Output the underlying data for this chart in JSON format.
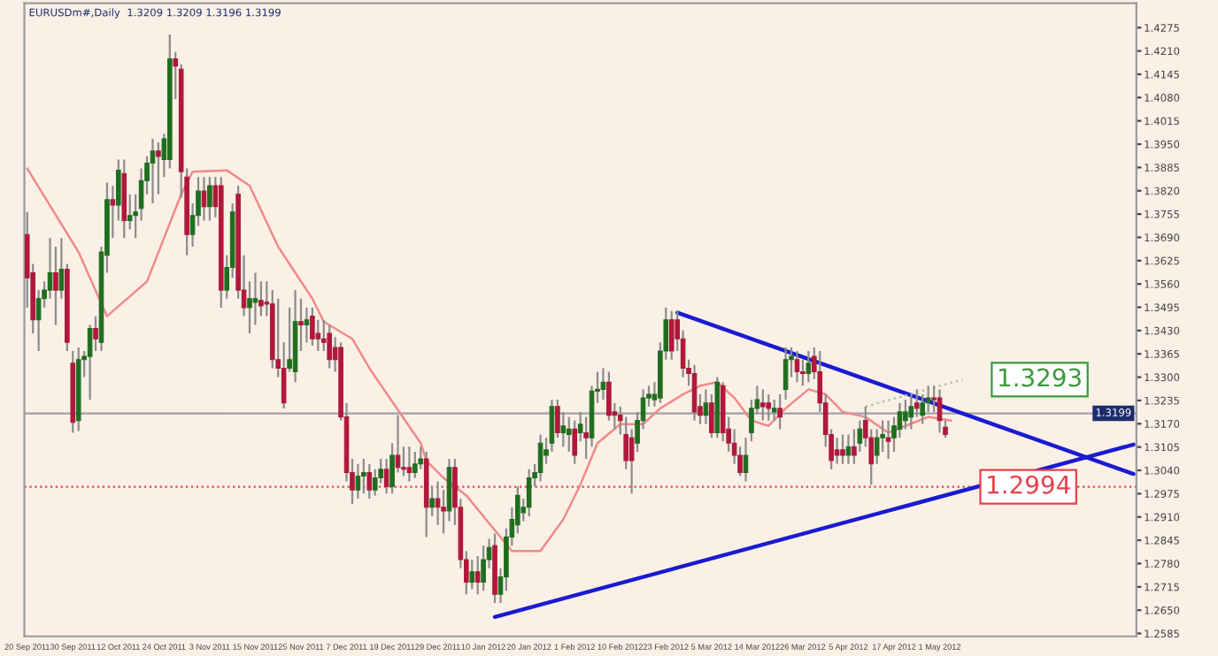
{
  "chart_data": {
    "type": "candlestick",
    "title": "EURUSDm#,Daily  1.3209 1.3209 1.3196 1.3199",
    "categories": [
      "20 Sep 2011",
      null,
      null,
      null,
      null,
      null,
      null,
      null,
      "30 Sep 2011",
      null,
      null,
      null,
      null,
      null,
      null,
      null,
      "12 Oct 2011",
      null,
      null,
      null,
      null,
      null,
      null,
      null,
      "24 Oct 2011",
      null,
      null,
      null,
      null,
      null,
      null,
      null,
      "3 Nov 2011",
      null,
      null,
      null,
      null,
      null,
      null,
      null,
      "15 Nov 2011",
      null,
      null,
      null,
      null,
      null,
      null,
      null,
      "25 Nov 2011",
      null,
      null,
      null,
      null,
      null,
      null,
      null,
      "7 Dec 2011",
      null,
      null,
      null,
      null,
      null,
      null,
      null,
      "19 Dec 2011",
      null,
      null,
      null,
      null,
      null,
      null,
      null,
      "29 Dec 2011",
      null,
      null,
      null,
      null,
      null,
      null,
      null,
      "10 Jan 2012",
      null,
      null,
      null,
      null,
      null,
      null,
      null,
      "20 Jan 2012",
      null,
      null,
      null,
      null,
      null,
      null,
      null,
      "1 Feb 2012",
      null,
      null,
      null,
      null,
      null,
      null,
      null,
      "10 Feb 2012",
      null,
      null,
      null,
      null,
      null,
      null,
      null,
      "23 Feb 2012",
      null,
      null,
      null,
      null,
      null,
      null,
      null,
      "5 Mar 2012",
      null,
      null,
      null,
      null,
      null,
      null,
      null,
      "14 Mar 2012",
      null,
      null,
      null,
      null,
      null,
      null,
      null,
      "26 Mar 2012",
      null,
      null,
      null,
      null,
      null,
      null,
      null,
      "5 Apr 2012",
      null,
      null,
      null,
      null,
      null,
      null,
      null,
      "17 Apr 2012",
      null,
      null,
      null,
      null,
      null,
      null,
      null,
      "1 May 2012",
      null,
      null,
      null,
      null,
      null,
      null,
      null,
      null,
      null,
      null,
      null,
      null,
      null,
      null,
      null,
      null,
      null,
      null,
      null,
      null,
      null,
      null,
      null,
      null,
      null,
      null,
      null,
      null,
      null,
      null,
      null,
      null,
      null,
      null
    ],
    "ohlc": [
      [
        1.3698,
        1.3761,
        1.3494,
        1.3577
      ],
      [
        1.3591,
        1.3616,
        1.3422,
        1.346
      ],
      [
        1.346,
        1.3543,
        1.3373,
        1.3519
      ],
      [
        1.3519,
        1.3567,
        1.3494,
        1.3543
      ],
      [
        1.3543,
        1.3688,
        1.3519,
        1.3591
      ],
      [
        1.3591,
        1.3664,
        1.3446,
        1.3543
      ],
      [
        1.3543,
        1.3688,
        1.3519,
        1.3601
      ],
      [
        1.3601,
        1.3616,
        1.3373,
        1.3397
      ],
      [
        1.3339,
        1.3373,
        1.3145,
        1.3174
      ],
      [
        1.3179,
        1.3383,
        1.315,
        1.3349
      ],
      [
        1.3349,
        1.3373,
        1.33,
        1.3358
      ],
      [
        1.3358,
        1.3446,
        1.3237,
        1.3436
      ],
      [
        1.3436,
        1.347,
        1.3373,
        1.3407
      ],
      [
        1.3397,
        1.3664,
        1.3373,
        1.3649
      ],
      [
        1.364,
        1.3843,
        1.3591,
        1.3795
      ],
      [
        1.3795,
        1.3834,
        1.3688,
        1.378
      ],
      [
        1.378,
        1.3907,
        1.3737,
        1.3877
      ],
      [
        1.3868,
        1.3907,
        1.3688,
        1.3737
      ],
      [
        1.3737,
        1.381,
        1.3712,
        1.3751
      ],
      [
        1.3751,
        1.381,
        1.3688,
        1.3761
      ],
      [
        1.3771,
        1.3882,
        1.3737,
        1.3848
      ],
      [
        1.3848,
        1.3916,
        1.381,
        1.3897
      ],
      [
        1.3897,
        1.3965,
        1.3785,
        1.3931
      ],
      [
        1.3931,
        1.3955,
        1.381,
        1.3916
      ],
      [
        1.3907,
        1.3979,
        1.3858,
        1.3965
      ],
      [
        1.3907,
        1.4256,
        1.3882,
        1.4188
      ],
      [
        1.4188,
        1.4207,
        1.4076,
        1.4168
      ],
      [
        1.4159,
        1.4173,
        1.38,
        1.3873
      ],
      [
        1.3858,
        1.3882,
        1.364,
        1.3698
      ],
      [
        1.3698,
        1.3785,
        1.3664,
        1.3751
      ],
      [
        1.3751,
        1.3858,
        1.3722,
        1.3819
      ],
      [
        1.3819,
        1.3858,
        1.3737,
        1.3776
      ],
      [
        1.3776,
        1.3858,
        1.3737,
        1.3834
      ],
      [
        1.3834,
        1.3858,
        1.3746,
        1.3776
      ],
      [
        1.3834,
        1.3858,
        1.3494,
        1.3543
      ],
      [
        1.3543,
        1.364,
        1.3519,
        1.3606
      ],
      [
        1.3606,
        1.3785,
        1.3577,
        1.3761
      ],
      [
        1.381,
        1.3834,
        1.3519,
        1.3543
      ],
      [
        1.3543,
        1.364,
        1.347,
        1.3494
      ],
      [
        1.3494,
        1.3567,
        1.3422,
        1.3519
      ],
      [
        1.3509,
        1.3591,
        1.3446,
        1.3519
      ],
      [
        1.3514,
        1.3567,
        1.347,
        1.3499
      ],
      [
        1.3509,
        1.3567,
        1.347,
        1.3504
      ],
      [
        1.3504,
        1.3543,
        1.3325,
        1.3349
      ],
      [
        1.3349,
        1.3519,
        1.33,
        1.3325
      ],
      [
        1.3325,
        1.3397,
        1.3213,
        1.3228
      ],
      [
        1.3325,
        1.3494,
        1.3315,
        1.3349
      ],
      [
        1.3315,
        1.3543,
        1.3286,
        1.3455
      ],
      [
        1.3455,
        1.3519,
        1.3373,
        1.3446
      ],
      [
        1.3446,
        1.3494,
        1.3397,
        1.346
      ],
      [
        1.347,
        1.3494,
        1.3388,
        1.3407
      ],
      [
        1.3422,
        1.346,
        1.3373,
        1.3407
      ],
      [
        1.3407,
        1.346,
        1.3373,
        1.3397
      ],
      [
        1.3422,
        1.3446,
        1.3325,
        1.3349
      ],
      [
        1.3383,
        1.3412,
        1.3315,
        1.3349
      ],
      [
        1.3383,
        1.3397,
        1.3179,
        1.3189
      ],
      [
        1.3189,
        1.3228,
        1.3009,
        1.3034
      ],
      [
        1.3034,
        1.3072,
        1.2946,
        1.2985
      ],
      [
        1.2985,
        1.3058,
        1.2961,
        1.3024
      ],
      [
        1.3024,
        1.3072,
        1.2975,
        1.3034
      ],
      [
        1.3034,
        1.3058,
        1.2961,
        1.2985
      ],
      [
        1.2985,
        1.3043,
        1.297,
        1.3019
      ],
      [
        1.3019,
        1.3072,
        1.3004,
        1.3043
      ],
      [
        1.3043,
        1.3072,
        1.2975,
        1.2995
      ],
      [
        1.2995,
        1.3116,
        1.2975,
        1.3082
      ],
      [
        1.3082,
        1.3194,
        1.3034,
        1.3048
      ],
      [
        1.3048,
        1.3106,
        1.3024,
        1.3043
      ],
      [
        1.3048,
        1.3106,
        1.3009,
        1.3034
      ],
      [
        1.3034,
        1.3092,
        1.3019,
        1.3058
      ],
      [
        1.3058,
        1.3106,
        1.3043,
        1.3072
      ],
      [
        1.3072,
        1.3092,
        1.2854,
        1.2937
      ],
      [
        1.2937,
        1.2995,
        1.2912,
        1.2961
      ],
      [
        1.2961,
        1.3009,
        1.2888,
        1.2937
      ],
      [
        1.2937,
        1.2985,
        1.2864,
        1.2927
      ],
      [
        1.2927,
        1.3072,
        1.2898,
        1.3048
      ],
      [
        1.3048,
        1.3072,
        1.2888,
        1.2937
      ],
      [
        1.2937,
        1.2961,
        1.2767,
        1.2791
      ],
      [
        1.2791,
        1.2815,
        1.2694,
        1.2728
      ],
      [
        1.2728,
        1.2791,
        1.2709,
        1.2757
      ],
      [
        1.2757,
        1.2801,
        1.2694,
        1.2728
      ],
      [
        1.2728,
        1.283,
        1.2704,
        1.2791
      ],
      [
        1.2791,
        1.2849,
        1.2767,
        1.2825
      ],
      [
        1.283,
        1.2864,
        1.267,
        1.2694
      ],
      [
        1.2694,
        1.2767,
        1.267,
        1.2743
      ],
      [
        1.2743,
        1.2878,
        1.2704,
        1.2854
      ],
      [
        1.2854,
        1.2937,
        1.283,
        1.2903
      ],
      [
        1.2888,
        1.2995,
        1.2864,
        1.297
      ],
      [
        1.2922,
        1.2961,
        1.2898,
        1.2937
      ],
      [
        1.2937,
        1.3043,
        1.2912,
        1.3019
      ],
      [
        1.3019,
        1.3058,
        1.2995,
        1.3034
      ],
      [
        1.3034,
        1.314,
        1.3009,
        1.3116
      ],
      [
        1.3082,
        1.3131,
        1.3058,
        1.3097
      ],
      [
        1.3116,
        1.3237,
        1.3092,
        1.3218
      ],
      [
        1.3218,
        1.3237,
        1.3131,
        1.3145
      ],
      [
        1.3145,
        1.3203,
        1.3106,
        1.3164
      ],
      [
        1.314,
        1.3189,
        1.3092,
        1.3155
      ],
      [
        1.3155,
        1.3179,
        1.3058,
        1.3082
      ],
      [
        1.3145,
        1.3203,
        1.3121,
        1.3169
      ],
      [
        1.3145,
        1.3189,
        1.3072,
        1.3131
      ],
      [
        1.3131,
        1.3276,
        1.3106,
        1.3261
      ],
      [
        1.3261,
        1.3315,
        1.3228,
        1.3266
      ],
      [
        1.3266,
        1.3325,
        1.3237,
        1.3286
      ],
      [
        1.3286,
        1.3315,
        1.3179,
        1.3194
      ],
      [
        1.3203,
        1.3228,
        1.3155,
        1.3194
      ],
      [
        1.3194,
        1.3218,
        1.314,
        1.3179
      ],
      [
        1.314,
        1.3189,
        1.3043,
        1.3067
      ],
      [
        1.3131,
        1.3155,
        1.2975,
        1.3067
      ],
      [
        1.3116,
        1.3203,
        1.3092,
        1.3179
      ],
      [
        1.3179,
        1.3266,
        1.3155,
        1.3242
      ],
      [
        1.3242,
        1.3276,
        1.3218,
        1.3252
      ],
      [
        1.3237,
        1.3286,
        1.3218,
        1.3252
      ],
      [
        1.3242,
        1.3397,
        1.3228,
        1.3373
      ],
      [
        1.3373,
        1.3494,
        1.3349,
        1.346
      ],
      [
        1.346,
        1.3485,
        1.3349,
        1.3373
      ],
      [
        1.346,
        1.3485,
        1.3373,
        1.3407
      ],
      [
        1.3407,
        1.3431,
        1.33,
        1.3325
      ],
      [
        1.3325,
        1.3349,
        1.3276,
        1.331
      ],
      [
        1.331,
        1.3334,
        1.3179,
        1.3203
      ],
      [
        1.3218,
        1.3252,
        1.3169,
        1.3194
      ],
      [
        1.3194,
        1.3266,
        1.3169,
        1.3228
      ],
      [
        1.3228,
        1.3252,
        1.3131,
        1.3145
      ],
      [
        1.3145,
        1.33,
        1.3131,
        1.3286
      ],
      [
        1.3276,
        1.3286,
        1.3121,
        1.3145
      ],
      [
        1.3155,
        1.3189,
        1.3092,
        1.3116
      ],
      [
        1.3116,
        1.3155,
        1.3058,
        1.3082
      ],
      [
        1.3082,
        1.3106,
        1.3024,
        1.3034
      ],
      [
        1.3034,
        1.3131,
        1.3009,
        1.3082
      ],
      [
        1.3145,
        1.3237,
        1.3121,
        1.3213
      ],
      [
        1.3213,
        1.3276,
        1.3198,
        1.3237
      ],
      [
        1.3228,
        1.3266,
        1.3179,
        1.3218
      ],
      [
        1.3228,
        1.3252,
        1.3179,
        1.3213
      ],
      [
        1.3203,
        1.3237,
        1.3179,
        1.3213
      ],
      [
        1.3213,
        1.3252,
        1.3155,
        1.3189
      ],
      [
        1.3266,
        1.3383,
        1.3237,
        1.3349
      ],
      [
        1.3349,
        1.3383,
        1.33,
        1.3358
      ],
      [
        1.3349,
        1.3373,
        1.3286,
        1.3315
      ],
      [
        1.3315,
        1.3349,
        1.3276,
        1.331
      ],
      [
        1.331,
        1.3373,
        1.3286,
        1.3339
      ],
      [
        1.3358,
        1.3383,
        1.3295,
        1.3315
      ],
      [
        1.3315,
        1.3373,
        1.3203,
        1.3228
      ],
      [
        1.3228,
        1.3252,
        1.3106,
        1.314
      ],
      [
        1.314,
        1.3155,
        1.3043,
        1.3067
      ],
      [
        1.3097,
        1.3131,
        1.3058,
        1.3082
      ],
      [
        1.3097,
        1.314,
        1.3058,
        1.3082
      ],
      [
        1.3082,
        1.314,
        1.3058,
        1.3106
      ],
      [
        1.3106,
        1.3155,
        1.3058,
        1.3082
      ],
      [
        1.3116,
        1.3179,
        1.3092,
        1.3155
      ],
      [
        1.3179,
        1.3218,
        1.3106,
        1.3131
      ],
      [
        1.3131,
        1.3155,
        1.3,
        1.3058
      ],
      [
        1.3082,
        1.3155,
        1.3058,
        1.3131
      ],
      [
        1.3131,
        1.3179,
        1.3092,
        1.314
      ],
      [
        1.3131,
        1.3179,
        1.3072,
        1.3121
      ],
      [
        1.3131,
        1.3189,
        1.3092,
        1.3164
      ],
      [
        1.3155,
        1.3228,
        1.3131,
        1.3203
      ],
      [
        1.3179,
        1.3237,
        1.3155,
        1.3203
      ],
      [
        1.3189,
        1.3252,
        1.3155,
        1.3218
      ],
      [
        1.3228,
        1.3266,
        1.3189,
        1.3213
      ],
      [
        1.3194,
        1.3252,
        1.3169,
        1.3228
      ],
      [
        1.3228,
        1.3276,
        1.3203,
        1.3242
      ],
      [
        1.3242,
        1.3276,
        1.3203,
        1.3237
      ],
      [
        1.3242,
        1.3266,
        1.3145,
        1.3179
      ],
      [
        1.316,
        1.3179,
        1.3131,
        1.314
      ],
      null,
      null,
      null,
      null,
      null,
      null,
      null,
      null,
      null,
      null,
      null,
      null,
      null,
      null,
      null,
      null,
      null,
      null,
      null,
      null,
      null,
      null,
      null,
      null,
      null,
      null,
      null,
      null,
      null,
      null,
      null,
      null,
      null
    ],
    "series": [
      {
        "type": "line",
        "color": "#f08a8a",
        "line_style": "solid",
        "values": [
          1.3882,
          null,
          null,
          null,
          null,
          null,
          null,
          null,
          null,
          1.3649,
          null,
          null,
          null,
          null,
          1.347,
          null,
          null,
          null,
          null,
          null,
          null,
          1.3567,
          null,
          null,
          null,
          null,
          null,
          1.381,
          null,
          1.3873,
          null,
          null,
          null,
          null,
          null,
          1.3877,
          null,
          null,
          null,
          1.3834,
          null,
          null,
          null,
          null,
          1.3664,
          null,
          null,
          null,
          null,
          null,
          1.3519,
          null,
          1.3455,
          null,
          null,
          null,
          null,
          1.3407,
          null,
          null,
          1.3325,
          null,
          null,
          null,
          null,
          null,
          null,
          null,
          null,
          1.3116,
          1.3067,
          null,
          null,
          1.3019,
          null,
          null,
          null,
          1.297,
          null,
          null,
          null,
          null,
          1.2873,
          null,
          null,
          1.2815,
          null,
          null,
          null,
          null,
          1.2815,
          null,
          null,
          null,
          1.2903,
          null,
          null,
          1.3,
          null,
          null,
          1.3116,
          null,
          null,
          null,
          1.3169,
          null,
          null,
          null,
          1.3169,
          null,
          null,
          1.3213,
          null,
          null,
          null,
          1.3252,
          null,
          null,
          1.3276,
          null,
          null,
          1.3286,
          null,
          null,
          1.3242,
          null,
          null,
          1.3179,
          null,
          null,
          1.3164,
          null,
          null,
          1.3213,
          null,
          null,
          null,
          1.3266,
          null,
          null,
          1.3252,
          null,
          null,
          1.3203,
          null,
          null,
          null,
          1.3189,
          null,
          null,
          null,
          1.3145,
          null,
          null,
          1.3164,
          null,
          null,
          null,
          1.3189,
          null,
          null,
          null,
          1.3179,
          null,
          null,
          null,
          null,
          null,
          null,
          null,
          null,
          null,
          null,
          null,
          null,
          null,
          null,
          null,
          null,
          null,
          null,
          null,
          null,
          null,
          null,
          null,
          null,
          null,
          null,
          null,
          null,
          null,
          null,
          null,
          null
        ]
      },
      {
        "type": "line",
        "color": "#1a1ad0",
        "line_style": "solid",
        "values": [
          null,
          null,
          null,
          null,
          null,
          null,
          null,
          null,
          null,
          null,
          null,
          null,
          null,
          null,
          null,
          null,
          null,
          null,
          null,
          null,
          null,
          null,
          null,
          null,
          null,
          null,
          null,
          null,
          null,
          null,
          null,
          null,
          null,
          null,
          null,
          null,
          null,
          null,
          null,
          null,
          null,
          null,
          null,
          null,
          null,
          null,
          null,
          null,
          null,
          null,
          null,
          null,
          null,
          null,
          null,
          null,
          null,
          null,
          null,
          null,
          null,
          null,
          null,
          null,
          null,
          null,
          null,
          null,
          null,
          null,
          null,
          null,
          null,
          null,
          null,
          null,
          null,
          null,
          null,
          null,
          null,
          null,
          null,
          null,
          null,
          null,
          null,
          null,
          null,
          null,
          null,
          null,
          null,
          null,
          null,
          null,
          null,
          null,
          null,
          null,
          null,
          null,
          null,
          null,
          null,
          null,
          null,
          null,
          null,
          null,
          null,
          null,
          null,
          null,
          1.348,
          null,
          null,
          null,
          null,
          null,
          null,
          null,
          null,
          null,
          null,
          null,
          null,
          null,
          null,
          null,
          null,
          null,
          null,
          null,
          null,
          null,
          null,
          null,
          null,
          null,
          null,
          null,
          null,
          null,
          null,
          null,
          null,
          null,
          null,
          null,
          null,
          null,
          null,
          null,
          null,
          null,
          null,
          null,
          null,
          null,
          null,
          null,
          null,
          null,
          null,
          null,
          null,
          null,
          null,
          null,
          null,
          null,
          null,
          null,
          null,
          null,
          null,
          null,
          null,
          null,
          null,
          null,
          null,
          null,
          null,
          null,
          null,
          null,
          null,
          null,
          null,
          null,
          null,
          null,
          1.303
        ]
      },
      {
        "type": "line",
        "color": "#1a1ad0",
        "line_style": "solid",
        "values": [
          null,
          null,
          null,
          null,
          null,
          null,
          null,
          null,
          null,
          null,
          null,
          null,
          null,
          null,
          null,
          null,
          null,
          null,
          null,
          null,
          null,
          null,
          null,
          null,
          null,
          null,
          null,
          null,
          null,
          null,
          null,
          null,
          null,
          null,
          null,
          null,
          null,
          null,
          null,
          null,
          null,
          null,
          null,
          null,
          null,
          null,
          null,
          null,
          null,
          null,
          null,
          null,
          null,
          null,
          null,
          null,
          null,
          null,
          null,
          null,
          null,
          null,
          null,
          null,
          null,
          null,
          null,
          null,
          null,
          null,
          null,
          null,
          null,
          null,
          null,
          null,
          null,
          null,
          null,
          null,
          null,
          null,
          1.2631,
          null,
          null,
          null,
          null,
          null,
          null,
          null,
          null,
          null,
          null,
          null,
          null,
          null,
          null,
          null,
          null,
          null,
          null,
          null,
          null,
          null,
          null,
          null,
          null,
          null,
          null,
          null,
          null,
          null,
          null,
          null,
          null,
          null,
          null,
          null,
          null,
          null,
          null,
          null,
          null,
          null,
          null,
          null,
          null,
          null,
          null,
          null,
          null,
          null,
          null,
          null,
          null,
          null,
          null,
          null,
          null,
          null,
          null,
          null,
          null,
          null,
          null,
          null,
          null,
          null,
          null,
          null,
          null,
          null,
          null,
          null,
          null,
          null,
          null,
          null,
          null,
          null,
          null,
          null,
          null,
          null,
          null,
          null,
          null,
          null,
          null,
          null,
          null,
          null,
          null,
          null,
          null,
          null,
          null,
          null,
          null,
          null,
          null,
          null,
          null,
          null,
          null,
          null,
          null,
          null,
          null,
          null,
          null,
          null,
          null,
          null,
          1.3112
        ]
      },
      {
        "type": "line",
        "color": "#a8c8a0",
        "line_style": "dotted",
        "values": [
          null,
          null,
          null,
          null,
          null,
          null,
          null,
          null,
          null,
          null,
          null,
          null,
          null,
          null,
          null,
          null,
          null,
          null,
          null,
          null,
          null,
          null,
          null,
          null,
          null,
          null,
          null,
          null,
          null,
          null,
          null,
          null,
          null,
          null,
          null,
          null,
          null,
          null,
          null,
          null,
          null,
          null,
          null,
          null,
          null,
          null,
          null,
          null,
          null,
          null,
          null,
          null,
          null,
          null,
          null,
          null,
          null,
          null,
          null,
          null,
          null,
          null,
          null,
          null,
          null,
          null,
          null,
          null,
          null,
          null,
          null,
          null,
          null,
          null,
          null,
          null,
          null,
          null,
          null,
          null,
          null,
          null,
          null,
          null,
          null,
          null,
          null,
          null,
          null,
          null,
          null,
          null,
          null,
          null,
          null,
          null,
          null,
          null,
          null,
          null,
          null,
          null,
          null,
          null,
          null,
          null,
          null,
          null,
          null,
          null,
          null,
          null,
          null,
          null,
          null,
          null,
          null,
          null,
          null,
          null,
          null,
          null,
          null,
          null,
          null,
          null,
          null,
          null,
          null,
          null,
          null,
          null,
          null,
          null,
          null,
          null,
          null,
          null,
          null,
          null,
          null,
          null,
          null,
          null,
          null,
          null,
          null,
          1.3218,
          null,
          null,
          null,
          null,
          null,
          null,
          null,
          null,
          null,
          null,
          null,
          null,
          null,
          null,
          null,
          null,
          1.3293,
          null,
          null,
          null,
          null,
          null,
          null,
          null,
          null,
          null,
          null,
          null,
          null,
          null,
          null,
          null,
          null,
          null,
          null,
          null,
          null,
          null,
          null,
          null,
          null,
          null,
          null,
          null,
          null,
          null,
          null
        ]
      }
    ],
    "annotations": [
      "1.3293"
    ],
    "ref_lines": [
      {
        "axis": "y",
        "value": 1.2994,
        "label": "1.2994",
        "color": "#e8404c",
        "line_style": "dotted"
      },
      {
        "axis": "y",
        "value": 1.3199,
        "label": "1.3199",
        "color": "#a0a0a8",
        "line_style": "solid"
      }
    ],
    "ylim": [
      1.2577,
      1.4343
    ],
    "yticks": [
      1.2585,
      {
        "value": 1.265,
        "label": "1.2650"
      },
      1.2715,
      {
        "value": 1.278,
        "label": "1.2780"
      },
      1.2845,
      {
        "value": 1.291,
        "label": "1.2910"
      },
      1.2975,
      {
        "value": 1.304,
        "label": "1.3040"
      },
      1.3105,
      {
        "value": 1.317,
        "label": "1.3170"
      },
      1.3235,
      {
        "value": 1.33,
        "label": "1.3300"
      },
      1.3365,
      {
        "value": 1.343,
        "label": "1.3430"
      },
      1.3495,
      {
        "value": 1.356,
        "label": "1.3560"
      },
      1.3625,
      {
        "value": 1.369,
        "label": "1.3690"
      },
      1.3755,
      {
        "value": 1.382,
        "label": "1.3820"
      },
      1.3885,
      {
        "value": 1.395,
        "label": "1.3950"
      },
      1.4015,
      {
        "value": 1.408,
        "label": "1.4080"
      },
      1.4145,
      {
        "value": 1.421,
        "label": "1.4210"
      },
      1.4275
    ]
  }
}
